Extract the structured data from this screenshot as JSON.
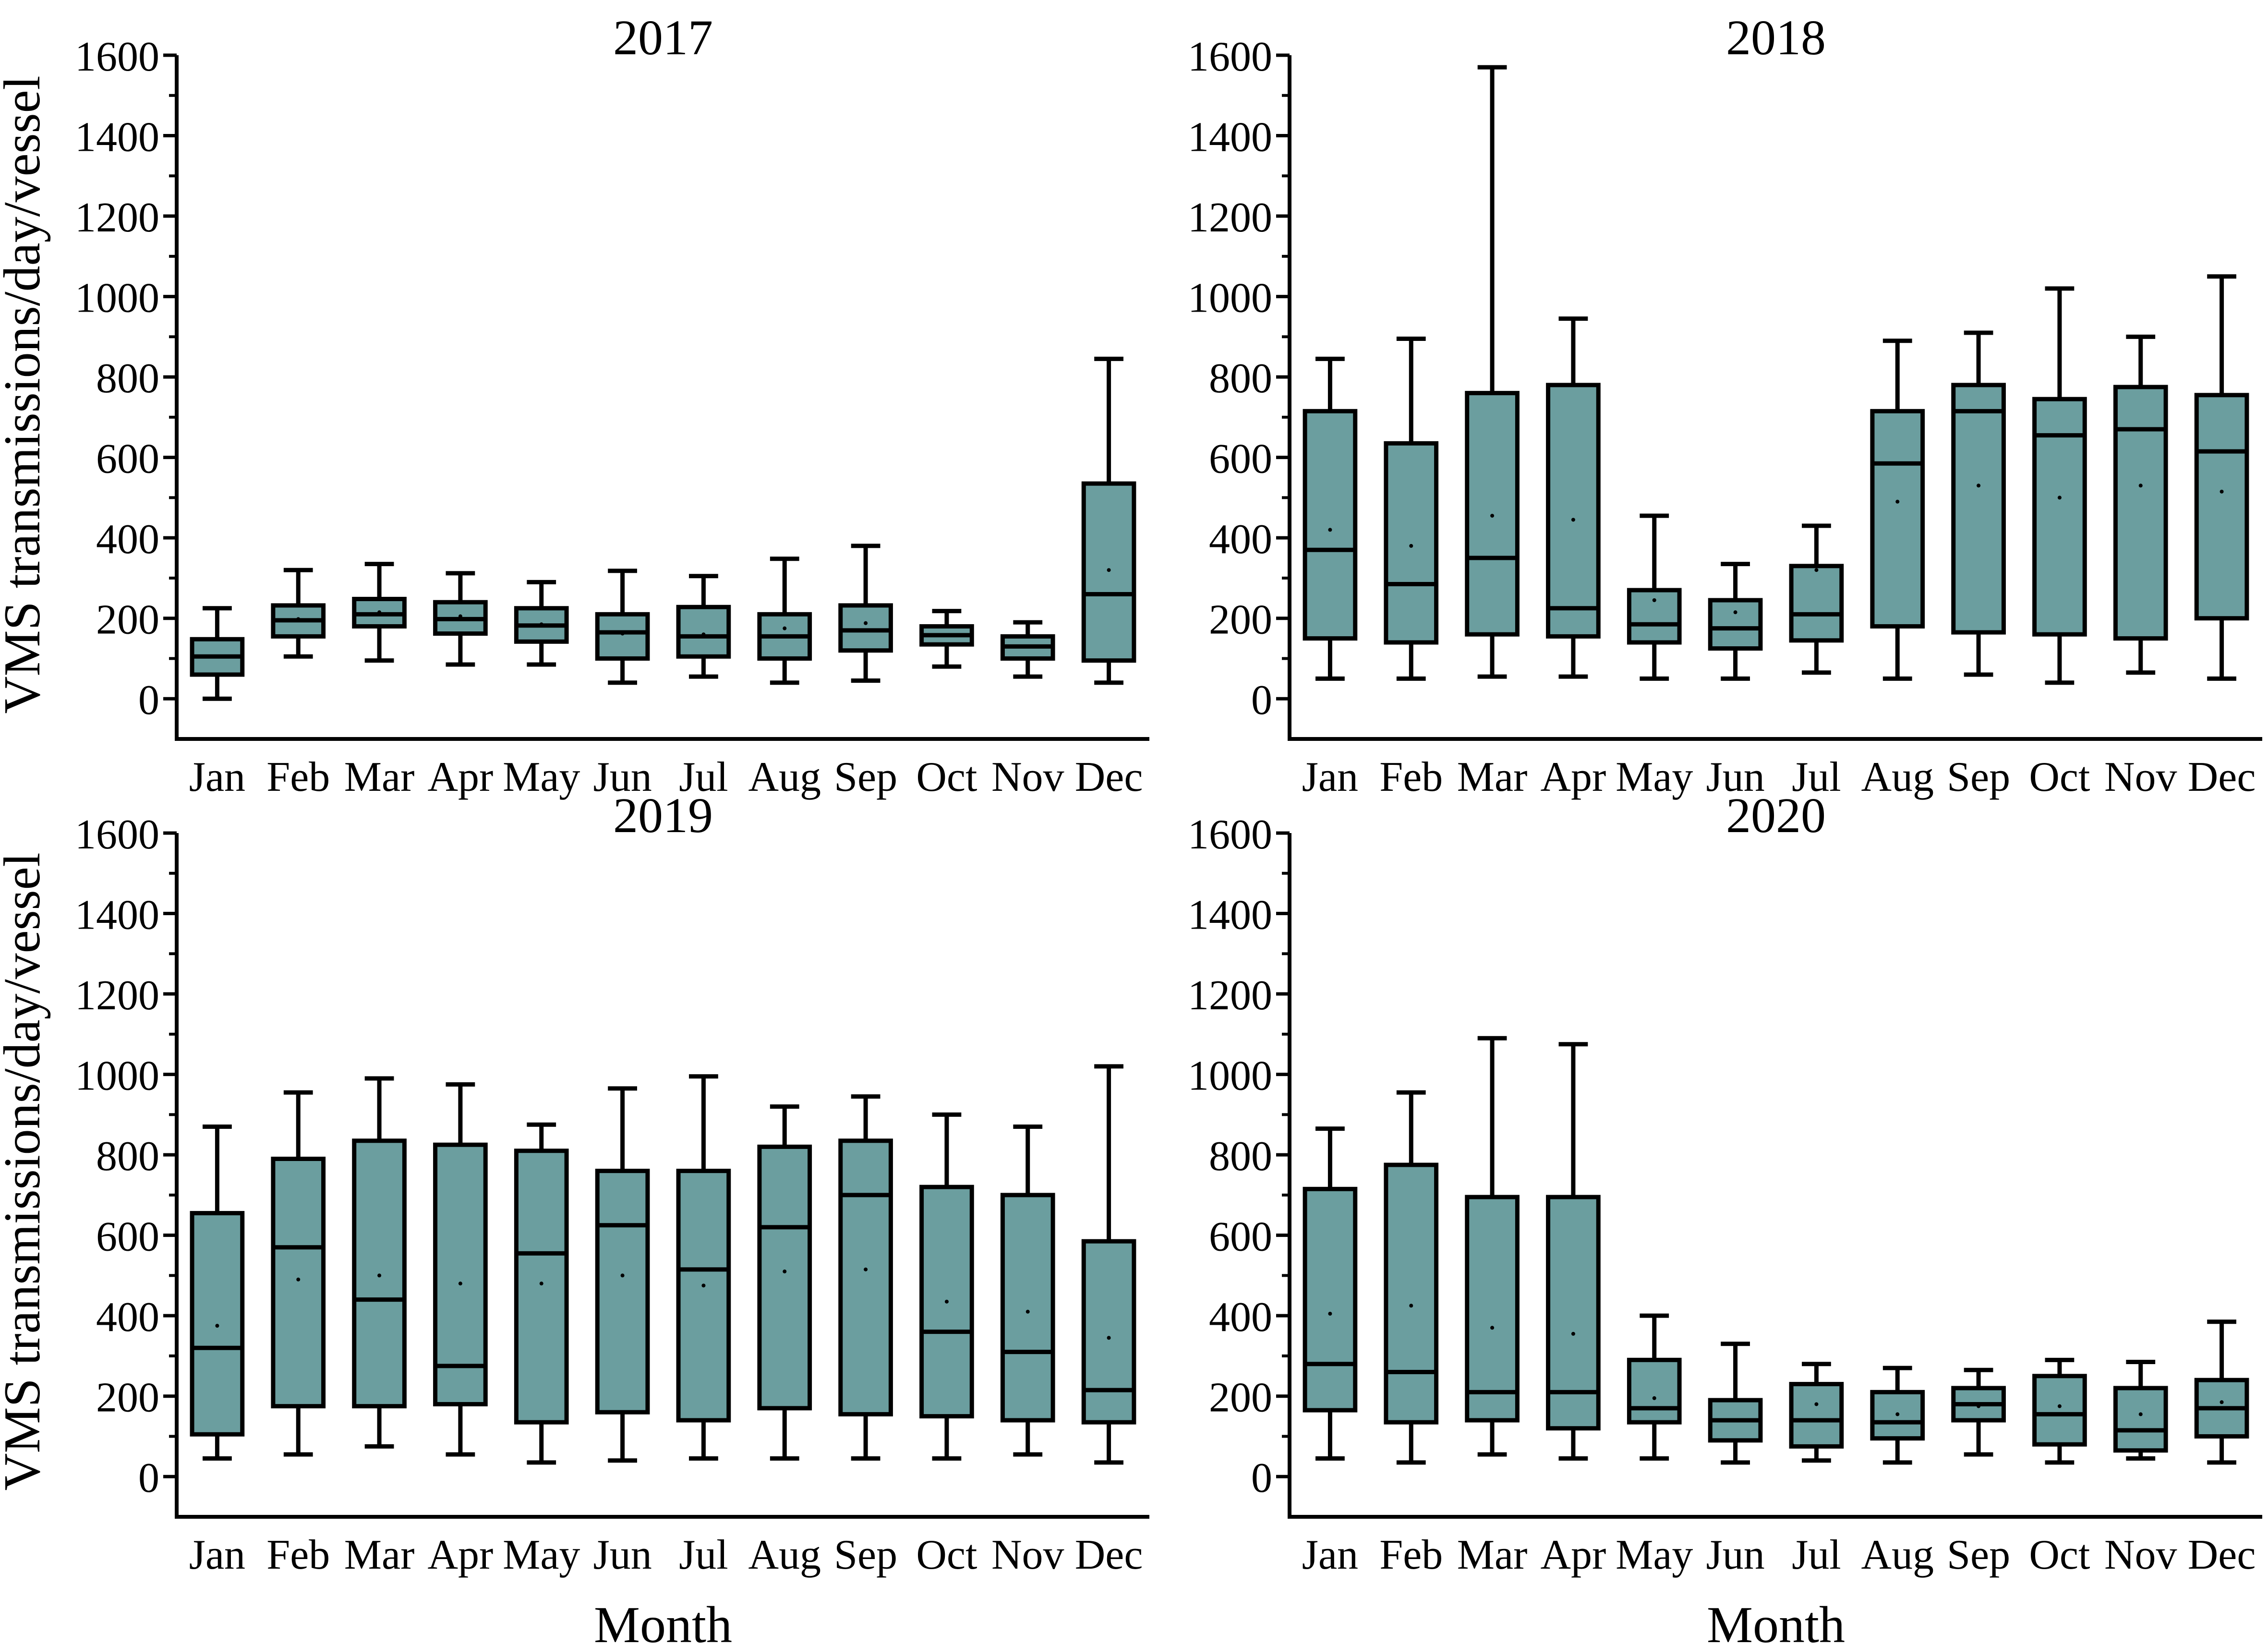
{
  "figure": {
    "y_label": "VMS transmissions/day/vessel",
    "x_label": "Month",
    "box_color": "#6b9e9f",
    "stroke_color": "#000000"
  },
  "chart_data": [
    {
      "type": "box",
      "title": "2017",
      "xlabel": "Month",
      "ylabel": "VMS transmissions/day/vessel",
      "ylim": [
        -100,
        1600
      ],
      "yticks": [
        0,
        200,
        400,
        600,
        800,
        1000,
        1200,
        1400,
        1600
      ],
      "tick_labels": [
        "0",
        "200",
        "400",
        "600",
        "800",
        "1000",
        "1200",
        "1400",
        "1600"
      ],
      "categories": [
        "Jan",
        "Feb",
        "Mar",
        "Apr",
        "May",
        "Jun",
        "Jul",
        "Aug",
        "Sep",
        "Oct",
        "Nov",
        "Dec"
      ],
      "boxes": [
        {
          "min": 0,
          "q1": 60,
          "median": 105,
          "q3": 148,
          "max": 225,
          "mean": 105
        },
        {
          "min": 105,
          "q1": 155,
          "median": 195,
          "q3": 232,
          "max": 320,
          "mean": 198
        },
        {
          "min": 95,
          "q1": 180,
          "median": 210,
          "q3": 248,
          "max": 335,
          "mean": 215
        },
        {
          "min": 85,
          "q1": 162,
          "median": 198,
          "q3": 240,
          "max": 312,
          "mean": 205
        },
        {
          "min": 85,
          "q1": 142,
          "median": 182,
          "q3": 225,
          "max": 290,
          "mean": 185
        },
        {
          "min": 40,
          "q1": 100,
          "median": 165,
          "q3": 210,
          "max": 318,
          "mean": 162
        },
        {
          "min": 55,
          "q1": 105,
          "median": 155,
          "q3": 228,
          "max": 305,
          "mean": 160
        },
        {
          "min": 40,
          "q1": 100,
          "median": 155,
          "q3": 210,
          "max": 348,
          "mean": 175
        },
        {
          "min": 45,
          "q1": 120,
          "median": 170,
          "q3": 232,
          "max": 380,
          "mean": 188
        },
        {
          "min": 80,
          "q1": 135,
          "median": 158,
          "q3": 180,
          "max": 218,
          "mean": 158
        },
        {
          "min": 55,
          "q1": 100,
          "median": 130,
          "q3": 155,
          "max": 190,
          "mean": 130
        },
        {
          "min": 40,
          "q1": 95,
          "median": 260,
          "q3": 535,
          "max": 845,
          "mean": 320
        }
      ]
    },
    {
      "type": "box",
      "title": "2018",
      "xlabel": "Month",
      "ylabel": "VMS transmissions/day/vessel",
      "ylim": [
        -100,
        1600
      ],
      "yticks": [
        0,
        200,
        400,
        600,
        800,
        1000,
        1200,
        1400,
        1600
      ],
      "tick_labels": [
        "0",
        "200",
        "400",
        "600",
        "800",
        "1000",
        "1200",
        "1400",
        "1600"
      ],
      "categories": [
        "Jan",
        "Feb",
        "Mar",
        "Apr",
        "May",
        "Jun",
        "Jul",
        "Aug",
        "Sep",
        "Oct",
        "Nov",
        "Dec"
      ],
      "boxes": [
        {
          "min": 50,
          "q1": 150,
          "median": 370,
          "q3": 715,
          "max": 845,
          "mean": 420
        },
        {
          "min": 50,
          "q1": 140,
          "median": 285,
          "q3": 635,
          "max": 895,
          "mean": 380
        },
        {
          "min": 55,
          "q1": 160,
          "median": 350,
          "q3": 760,
          "max": 1570,
          "mean": 455
        },
        {
          "min": 55,
          "q1": 155,
          "median": 225,
          "q3": 780,
          "max": 945,
          "mean": 445
        },
        {
          "min": 50,
          "q1": 140,
          "median": 185,
          "q3": 270,
          "max": 455,
          "mean": 245
        },
        {
          "min": 50,
          "q1": 125,
          "median": 175,
          "q3": 245,
          "max": 335,
          "mean": 215
        },
        {
          "min": 65,
          "q1": 145,
          "median": 210,
          "q3": 330,
          "max": 430,
          "mean": 320
        },
        {
          "min": 50,
          "q1": 180,
          "median": 585,
          "q3": 715,
          "max": 890,
          "mean": 490
        },
        {
          "min": 60,
          "q1": 165,
          "median": 715,
          "q3": 780,
          "max": 910,
          "mean": 530
        },
        {
          "min": 40,
          "q1": 160,
          "median": 655,
          "q3": 745,
          "max": 1020,
          "mean": 500
        },
        {
          "min": 65,
          "q1": 150,
          "median": 670,
          "q3": 775,
          "max": 900,
          "mean": 530
        },
        {
          "min": 50,
          "q1": 200,
          "median": 615,
          "q3": 755,
          "max": 1050,
          "mean": 515
        }
      ]
    },
    {
      "type": "box",
      "title": "2019",
      "xlabel": "Month",
      "ylabel": "VMS transmissions/day/vessel",
      "ylim": [
        -100,
        1600
      ],
      "yticks": [
        0,
        200,
        400,
        600,
        800,
        1000,
        1200,
        1400,
        1600
      ],
      "tick_labels": [
        "0",
        "200",
        "400",
        "600",
        "800",
        "1000",
        "1200",
        "1400",
        "1600"
      ],
      "categories": [
        "Jan",
        "Feb",
        "Mar",
        "Apr",
        "May",
        "Jun",
        "Jul",
        "Aug",
        "Sep",
        "Oct",
        "Nov",
        "Dec"
      ],
      "boxes": [
        {
          "min": 45,
          "q1": 105,
          "median": 320,
          "q3": 655,
          "max": 870,
          "mean": 375
        },
        {
          "min": 55,
          "q1": 175,
          "median": 570,
          "q3": 790,
          "max": 955,
          "mean": 490
        },
        {
          "min": 75,
          "q1": 175,
          "median": 440,
          "q3": 835,
          "max": 990,
          "mean": 500
        },
        {
          "min": 55,
          "q1": 180,
          "median": 275,
          "q3": 825,
          "max": 975,
          "mean": 480
        },
        {
          "min": 35,
          "q1": 135,
          "median": 555,
          "q3": 810,
          "max": 875,
          "mean": 480
        },
        {
          "min": 40,
          "q1": 160,
          "median": 625,
          "q3": 760,
          "max": 965,
          "mean": 500
        },
        {
          "min": 45,
          "q1": 140,
          "median": 515,
          "q3": 760,
          "max": 995,
          "mean": 475
        },
        {
          "min": 45,
          "q1": 170,
          "median": 620,
          "q3": 820,
          "max": 920,
          "mean": 510
        },
        {
          "min": 45,
          "q1": 155,
          "median": 700,
          "q3": 835,
          "max": 945,
          "mean": 515
        },
        {
          "min": 45,
          "q1": 150,
          "median": 360,
          "q3": 720,
          "max": 900,
          "mean": 435
        },
        {
          "min": 55,
          "q1": 140,
          "median": 310,
          "q3": 700,
          "max": 870,
          "mean": 410
        },
        {
          "min": 35,
          "q1": 135,
          "median": 215,
          "q3": 585,
          "max": 1020,
          "mean": 345
        }
      ]
    },
    {
      "type": "box",
      "title": "2020",
      "xlabel": "Month",
      "ylabel": "VMS transmissions/day/vessel",
      "ylim": [
        -100,
        1600
      ],
      "yticks": [
        0,
        200,
        400,
        600,
        800,
        1000,
        1200,
        1400,
        1600
      ],
      "tick_labels": [
        "0",
        "200",
        "400",
        "600",
        "800",
        "1000",
        "1200",
        "1400",
        "1600"
      ],
      "categories": [
        "Jan",
        "Feb",
        "Mar",
        "Apr",
        "May",
        "Jun",
        "Jul",
        "Aug",
        "Sep",
        "Oct",
        "Nov",
        "Dec"
      ],
      "boxes": [
        {
          "min": 45,
          "q1": 165,
          "median": 280,
          "q3": 715,
          "max": 865,
          "mean": 405
        },
        {
          "min": 35,
          "q1": 135,
          "median": 260,
          "q3": 775,
          "max": 955,
          "mean": 425
        },
        {
          "min": 55,
          "q1": 140,
          "median": 210,
          "q3": 695,
          "max": 1090,
          "mean": 370
        },
        {
          "min": 45,
          "q1": 120,
          "median": 210,
          "q3": 695,
          "max": 1075,
          "mean": 355
        },
        {
          "min": 45,
          "q1": 135,
          "median": 170,
          "q3": 290,
          "max": 400,
          "mean": 195
        },
        {
          "min": 35,
          "q1": 90,
          "median": 140,
          "q3": 190,
          "max": 330,
          "mean": 140
        },
        {
          "min": 40,
          "q1": 75,
          "median": 140,
          "q3": 230,
          "max": 280,
          "mean": 180
        },
        {
          "min": 35,
          "q1": 95,
          "median": 135,
          "q3": 210,
          "max": 270,
          "mean": 155
        },
        {
          "min": 55,
          "q1": 140,
          "median": 180,
          "q3": 220,
          "max": 265,
          "mean": 175
        },
        {
          "min": 35,
          "q1": 80,
          "median": 155,
          "q3": 250,
          "max": 290,
          "mean": 175
        },
        {
          "min": 45,
          "q1": 65,
          "median": 115,
          "q3": 220,
          "max": 285,
          "mean": 155
        },
        {
          "min": 35,
          "q1": 100,
          "median": 170,
          "q3": 240,
          "max": 385,
          "mean": 185
        }
      ]
    }
  ]
}
